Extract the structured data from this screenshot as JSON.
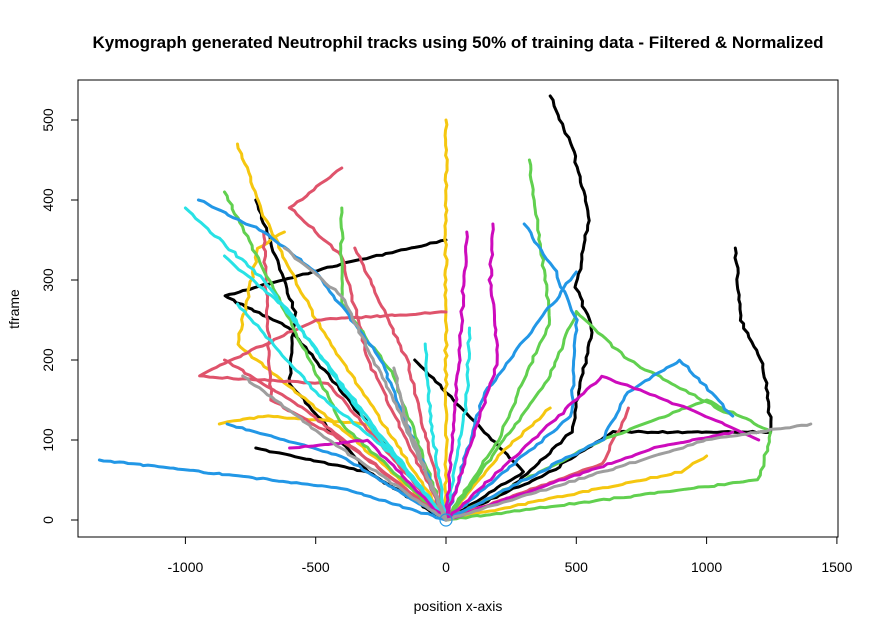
{
  "chart_data": {
    "type": "line",
    "title": "Kymograph generated Neutrophil tracks using 50% of training data - Filtered & Normalized",
    "xlabel": "position x-axis",
    "ylabel": "tframe",
    "xlim": [
      -1400,
      1500
    ],
    "ylim": [
      -25,
      550
    ],
    "x_ticks": [
      -1000,
      -500,
      0,
      500,
      1000,
      1500
    ],
    "y_ticks": [
      0,
      100,
      200,
      300,
      400,
      500
    ],
    "x_tick_labels": [
      "-1000",
      "-500",
      "0",
      "500",
      "1000",
      "1500"
    ],
    "y_tick_labels": [
      "0",
      "100",
      "200",
      "300",
      "400",
      "500"
    ],
    "grid": false,
    "legend": "none",
    "origin_marker": {
      "x": 0,
      "y": 0,
      "color": "#2297e6"
    },
    "series": [
      {
        "color": "#000000",
        "points": [
          [
            0,
            0
          ],
          [
            250,
            40
          ],
          [
            480,
            110
          ],
          [
            560,
            240
          ],
          [
            500,
            290
          ],
          [
            550,
            380
          ],
          [
            490,
            460
          ],
          [
            400,
            530
          ]
        ]
      },
      {
        "color": "#000000",
        "points": [
          [
            0,
            0
          ],
          [
            400,
            60
          ],
          [
            640,
            110
          ],
          [
            1250,
            110
          ],
          [
            1220,
            190
          ],
          [
            1130,
            250
          ],
          [
            1110,
            340
          ]
        ]
      },
      {
        "color": "#000000",
        "points": [
          [
            0,
            0
          ],
          [
            -300,
            60
          ],
          [
            -600,
            170
          ],
          [
            -580,
            260
          ],
          [
            -730,
            400
          ]
        ]
      },
      {
        "color": "#000000",
        "points": [
          [
            0,
            0
          ],
          [
            -250,
            100
          ],
          [
            -600,
            240
          ],
          [
            -850,
            280
          ],
          [
            -400,
            320
          ],
          [
            0,
            350
          ]
        ]
      },
      {
        "color": "#000000",
        "points": [
          [
            0,
            0
          ],
          [
            -300,
            60
          ],
          [
            -730,
            90
          ]
        ]
      },
      {
        "color": "#000000",
        "points": [
          [
            0,
            0
          ],
          [
            300,
            60
          ],
          [
            -120,
            200
          ]
        ]
      },
      {
        "color": "#f5c710",
        "points": [
          [
            0,
            0
          ],
          [
            0,
            500
          ]
        ]
      },
      {
        "color": "#f5c710",
        "points": [
          [
            0,
            0
          ],
          [
            -350,
            100
          ],
          [
            -800,
            220
          ],
          [
            -720,
            340
          ],
          [
            -620,
            360
          ]
        ]
      },
      {
        "color": "#f5c710",
        "points": [
          [
            0,
            0
          ],
          [
            -500,
            250
          ],
          [
            -700,
            380
          ],
          [
            -800,
            470
          ]
        ]
      },
      {
        "color": "#f5c710",
        "points": [
          [
            0,
            0
          ],
          [
            -300,
            120
          ],
          [
            -700,
            130
          ],
          [
            -870,
            120
          ]
        ]
      },
      {
        "color": "#f5c710",
        "points": [
          [
            0,
            0
          ],
          [
            200,
            80
          ],
          [
            400,
            140
          ]
        ]
      },
      {
        "color": "#f5c710",
        "points": [
          [
            0,
            0
          ],
          [
            900,
            60
          ],
          [
            1000,
            80
          ]
        ]
      },
      {
        "color": "#df536b",
        "points": [
          [
            0,
            0
          ],
          [
            -450,
            170
          ],
          [
            -950,
            180
          ],
          [
            -500,
            250
          ],
          [
            0,
            260
          ]
        ]
      },
      {
        "color": "#df536b",
        "points": [
          [
            0,
            0
          ],
          [
            -300,
            200
          ],
          [
            -400,
            330
          ],
          [
            -600,
            390
          ],
          [
            -400,
            440
          ]
        ]
      },
      {
        "color": "#df536b",
        "points": [
          [
            0,
            0
          ],
          [
            -400,
            100
          ],
          [
            -670,
            150
          ],
          [
            -700,
            360
          ]
        ]
      },
      {
        "color": "#df536b",
        "points": [
          [
            0,
            0
          ],
          [
            -150,
            200
          ],
          [
            -350,
            340
          ]
        ]
      },
      {
        "color": "#df536b",
        "points": [
          [
            0,
            0
          ],
          [
            600,
            70
          ],
          [
            700,
            140
          ]
        ]
      },
      {
        "color": "#df536b",
        "points": [
          [
            0,
            0
          ],
          [
            -550,
            140
          ],
          [
            -850,
            200
          ]
        ]
      },
      {
        "color": "#61d04f",
        "points": [
          [
            0,
            0
          ],
          [
            -400,
            120
          ],
          [
            -600,
            250
          ],
          [
            -850,
            410
          ]
        ]
      },
      {
        "color": "#61d04f",
        "points": [
          [
            0,
            0
          ],
          [
            200,
            100
          ],
          [
            400,
            250
          ],
          [
            360,
            350
          ],
          [
            320,
            450
          ]
        ]
      },
      {
        "color": "#61d04f",
        "points": [
          [
            0,
            0
          ],
          [
            600,
            100
          ],
          [
            1000,
            150
          ],
          [
            1250,
            110
          ],
          [
            1200,
            50
          ],
          [
            0,
            0
          ]
        ]
      },
      {
        "color": "#61d04f",
        "points": [
          [
            0,
            0
          ],
          [
            -200,
            180
          ],
          [
            -400,
            270
          ],
          [
            -400,
            390
          ]
        ]
      },
      {
        "color": "#61d04f",
        "points": [
          [
            0,
            0
          ],
          [
            400,
            180
          ],
          [
            500,
            260
          ],
          [
            700,
            200
          ],
          [
            1100,
            130
          ]
        ]
      },
      {
        "color": "#2297e6",
        "points": [
          [
            0,
            0
          ],
          [
            -250,
            200
          ],
          [
            -500,
            310
          ],
          [
            -700,
            360
          ],
          [
            -950,
            400
          ]
        ]
      },
      {
        "color": "#2297e6",
        "points": [
          [
            0,
            0
          ],
          [
            -400,
            40
          ],
          [
            -1330,
            75
          ]
        ]
      },
      {
        "color": "#2297e6",
        "points": [
          [
            0,
            0
          ],
          [
            480,
            130
          ],
          [
            500,
            250
          ],
          [
            420,
            310
          ],
          [
            300,
            370
          ]
        ]
      },
      {
        "color": "#2297e6",
        "points": [
          [
            0,
            0
          ],
          [
            600,
            100
          ],
          [
            700,
            160
          ],
          [
            900,
            200
          ],
          [
            1100,
            130
          ]
        ]
      },
      {
        "color": "#2297e6",
        "points": [
          [
            0,
            0
          ],
          [
            -400,
            80
          ],
          [
            -840,
            120
          ]
        ]
      },
      {
        "color": "#2297e6",
        "points": [
          [
            0,
            0
          ],
          [
            150,
            160
          ],
          [
            500,
            310
          ]
        ]
      },
      {
        "color": "#28e2e5",
        "points": [
          [
            0,
            0
          ],
          [
            -400,
            170
          ],
          [
            -700,
            300
          ],
          [
            -1000,
            390
          ]
        ]
      },
      {
        "color": "#28e2e5",
        "points": [
          [
            0,
            0
          ],
          [
            -300,
            120
          ],
          [
            -600,
            260
          ],
          [
            -850,
            330
          ]
        ]
      },
      {
        "color": "#28e2e5",
        "points": [
          [
            0,
            0
          ],
          [
            -200,
            80
          ],
          [
            -500,
            160
          ],
          [
            -800,
            270
          ]
        ]
      },
      {
        "color": "#28e2e5",
        "points": [
          [
            0,
            0
          ],
          [
            80,
            150
          ],
          [
            90,
            240
          ]
        ]
      },
      {
        "color": "#28e2e5",
        "points": [
          [
            0,
            0
          ],
          [
            -60,
            130
          ],
          [
            -80,
            220
          ]
        ]
      },
      {
        "color": "#cd0bbc",
        "points": [
          [
            0,
            0
          ],
          [
            200,
            200
          ],
          [
            170,
            300
          ],
          [
            180,
            370
          ]
        ]
      },
      {
        "color": "#cd0bbc",
        "points": [
          [
            0,
            0
          ],
          [
            600,
            180
          ],
          [
            1000,
            130
          ],
          [
            1200,
            100
          ]
        ]
      },
      {
        "color": "#cd0bbc",
        "points": [
          [
            0,
            0
          ],
          [
            50,
            200
          ],
          [
            80,
            360
          ]
        ]
      },
      {
        "color": "#cd0bbc",
        "points": [
          [
            0,
            0
          ],
          [
            800,
            90
          ],
          [
            1100,
            110
          ]
        ]
      },
      {
        "color": "#cd0bbc",
        "points": [
          [
            0,
            0
          ],
          [
            -300,
            100
          ],
          [
            -600,
            90
          ]
        ]
      },
      {
        "color": "#9e9e9e",
        "points": [
          [
            0,
            0
          ],
          [
            1000,
            100
          ],
          [
            1400,
            120
          ]
        ]
      },
      {
        "color": "#9e9e9e",
        "points": [
          [
            0,
            0
          ],
          [
            -450,
            100
          ],
          [
            -780,
            180
          ]
        ]
      },
      {
        "color": "#9e9e9e",
        "points": [
          [
            0,
            0
          ],
          [
            -200,
            150
          ],
          [
            -400,
            280
          ],
          [
            -620,
            340
          ]
        ]
      },
      {
        "color": "#9e9e9e",
        "points": [
          [
            0,
            0
          ],
          [
            -150,
            120
          ],
          [
            -200,
            190
          ]
        ]
      }
    ]
  }
}
